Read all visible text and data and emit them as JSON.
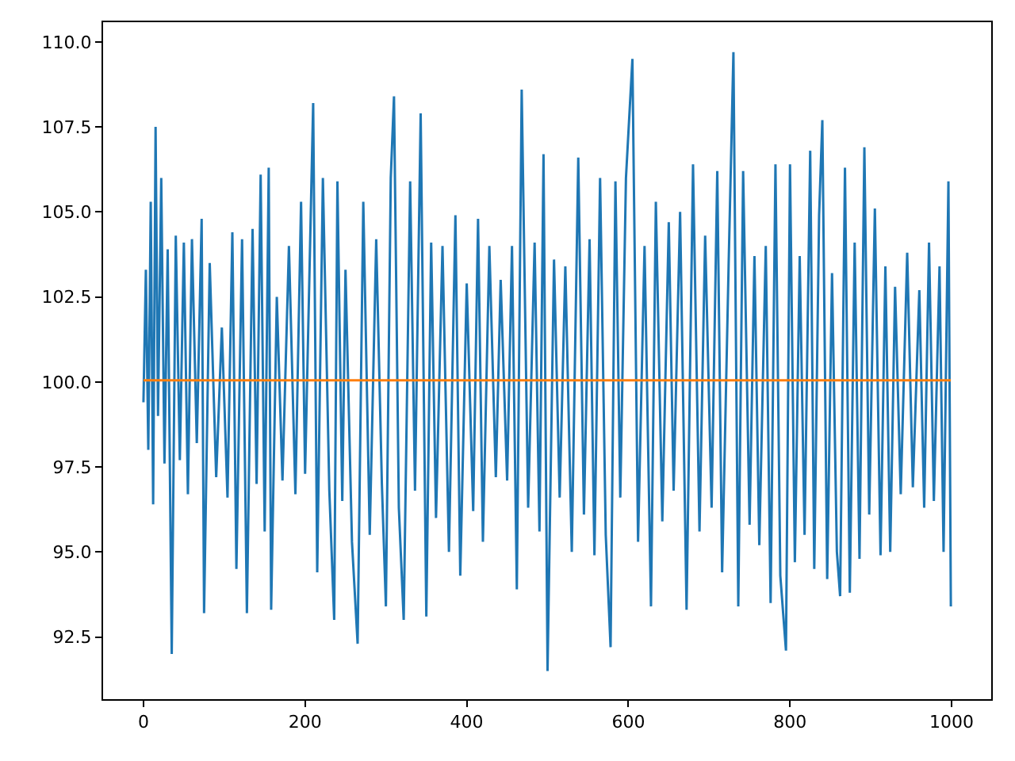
{
  "chart_data": {
    "type": "line",
    "xlim": [
      -49.95,
      1048.95
    ],
    "ylim": [
      90.67,
      110.58
    ],
    "xticks": [
      0,
      200,
      400,
      600,
      800,
      1000
    ],
    "yticks": [
      {
        "value": 92.5,
        "label": "92.5"
      },
      {
        "value": 95,
        "label": "95.0"
      },
      {
        "value": 97.5,
        "label": "97.5"
      },
      {
        "value": 100,
        "label": "100.0"
      },
      {
        "value": 102.5,
        "label": "102.5"
      },
      {
        "value": 105,
        "label": "105.0"
      },
      {
        "value": 107.5,
        "label": "107.5"
      },
      {
        "value": 110,
        "label": "110.0"
      }
    ],
    "marker": "none",
    "line_style": "solid",
    "series": [
      {
        "color": "#1f77b4",
        "x": [
          0,
          3,
          6,
          9,
          12,
          15,
          18,
          22,
          26,
          30,
          35,
          40,
          45,
          50,
          55,
          60,
          66,
          72,
          75,
          82,
          90,
          97,
          104,
          110,
          115,
          122,
          128,
          135,
          140,
          145,
          150,
          155,
          158,
          165,
          172,
          180,
          188,
          195,
          200,
          210,
          215,
          222,
          230,
          236,
          240,
          246,
          250,
          258,
          265,
          272,
          280,
          288,
          295,
          300,
          306,
          310,
          316,
          322,
          330,
          336,
          343,
          350,
          356,
          362,
          370,
          378,
          386,
          392,
          400,
          408,
          414,
          420,
          428,
          436,
          442,
          450,
          456,
          462,
          468,
          476,
          484,
          490,
          495,
          500,
          508,
          515,
          522,
          530,
          538,
          545,
          552,
          558,
          565,
          572,
          578,
          584,
          590,
          597,
          605,
          612,
          620,
          628,
          634,
          642,
          650,
          656,
          664,
          672,
          680,
          688,
          695,
          703,
          710,
          716,
          724,
          730,
          736,
          742,
          750,
          756,
          762,
          770,
          776,
          782,
          788,
          795,
          800,
          806,
          812,
          818,
          825,
          830,
          836,
          840,
          846,
          852,
          858,
          862,
          868,
          874,
          880,
          886,
          892,
          898,
          905,
          912,
          918,
          924,
          930,
          937,
          945,
          952,
          960,
          966,
          972,
          978,
          985,
          990,
          996,
          999
        ],
        "values": [
          99.4,
          103.3,
          98.0,
          105.3,
          96.4,
          107.5,
          99.0,
          106.0,
          97.6,
          103.9,
          92.0,
          104.3,
          97.7,
          104.1,
          96.7,
          104.2,
          98.2,
          104.8,
          93.2,
          103.5,
          97.2,
          101.6,
          96.6,
          104.4,
          94.5,
          104.2,
          93.2,
          104.5,
          97.0,
          106.1,
          95.6,
          106.3,
          93.3,
          102.5,
          97.1,
          104.0,
          96.7,
          105.3,
          97.3,
          108.2,
          94.4,
          106.0,
          96.8,
          93.0,
          105.9,
          96.5,
          103.3,
          95.3,
          92.3,
          105.3,
          95.5,
          104.2,
          97.0,
          93.4,
          106.0,
          108.4,
          96.3,
          93.0,
          105.9,
          96.8,
          107.9,
          93.1,
          104.1,
          96.0,
          104.0,
          95.0,
          104.9,
          94.3,
          102.9,
          96.2,
          104.8,
          95.3,
          104.0,
          97.2,
          103.0,
          97.1,
          104.0,
          93.9,
          108.6,
          96.3,
          104.1,
          95.6,
          106.7,
          91.5,
          103.6,
          96.6,
          103.4,
          95.0,
          106.6,
          96.1,
          104.2,
          94.9,
          106.0,
          95.5,
          92.2,
          105.9,
          96.6,
          106.0,
          109.5,
          95.3,
          104.0,
          93.4,
          105.3,
          95.9,
          104.7,
          96.8,
          105.0,
          93.3,
          106.4,
          95.6,
          104.3,
          96.3,
          106.2,
          94.4,
          103.4,
          109.7,
          93.4,
          106.2,
          95.8,
          103.7,
          95.2,
          104.0,
          93.5,
          106.4,
          94.3,
          92.1,
          106.4,
          94.7,
          103.7,
          95.5,
          106.8,
          94.5,
          104.9,
          107.7,
          94.2,
          103.2,
          95.0,
          93.7,
          106.3,
          93.8,
          104.1,
          94.8,
          106.9,
          96.1,
          105.1,
          94.9,
          103.4,
          95.0,
          102.8,
          96.7,
          103.8,
          96.9,
          102.7,
          96.3,
          104.1,
          96.5,
          103.4,
          95.0,
          105.9,
          93.4
        ]
      },
      {
        "color": "#ff7f0e",
        "x": [
          0,
          999
        ],
        "values": [
          100.05,
          100.05
        ]
      }
    ]
  }
}
